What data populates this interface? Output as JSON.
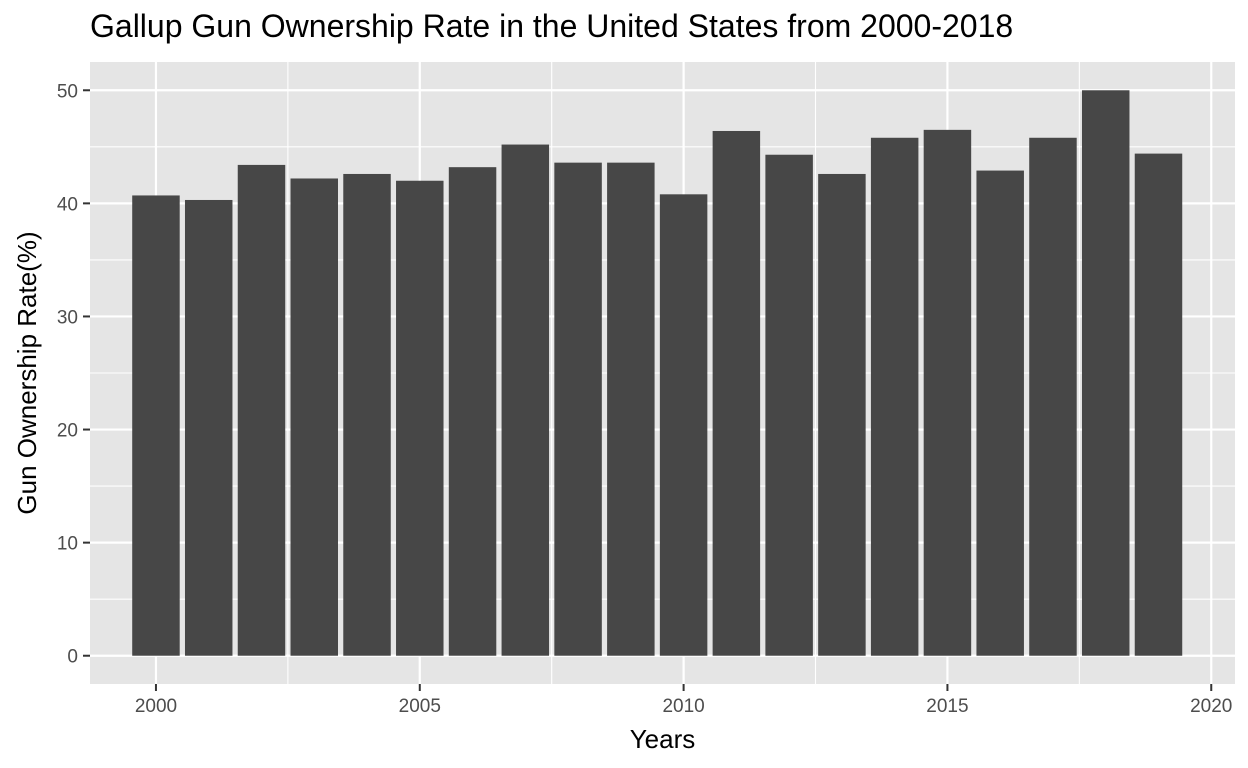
{
  "chart_data": {
    "type": "bar",
    "title": "Gallup Gun Ownership Rate in the United States from 2000-2018",
    "xlabel": "Years",
    "ylabel": "Gun Ownership Rate(%)",
    "x": [
      2000,
      2001,
      2002,
      2003,
      2004,
      2005,
      2006,
      2007,
      2008,
      2009,
      2010,
      2011,
      2012,
      2013,
      2014,
      2015,
      2016,
      2017,
      2018,
      2019
    ],
    "values": [
      40.7,
      40.3,
      43.4,
      42.2,
      42.6,
      42.0,
      43.2,
      45.2,
      43.6,
      43.6,
      40.8,
      46.4,
      44.3,
      42.6,
      45.8,
      46.5,
      42.9,
      45.8,
      50.0,
      44.4
    ],
    "xlim": [
      1998.75,
      2020.45
    ],
    "ylim": [
      -2.5,
      52.5
    ],
    "x_ticks": [
      2000,
      2005,
      2010,
      2015,
      2020
    ],
    "y_ticks": [
      0,
      10,
      20,
      30,
      40,
      50
    ],
    "x_tick_labels": [
      "2000",
      "2005",
      "2010",
      "2015",
      "2020"
    ],
    "y_tick_labels": [
      "0",
      "10",
      "20",
      "30",
      "40",
      "50"
    ],
    "grid": true,
    "legend": "none",
    "colors": {
      "bar": "#474747",
      "panel": "#e5e5e5",
      "grid": "#ffffff",
      "tick_text": "#4d4d4d",
      "axis_tick": "#333333"
    }
  }
}
